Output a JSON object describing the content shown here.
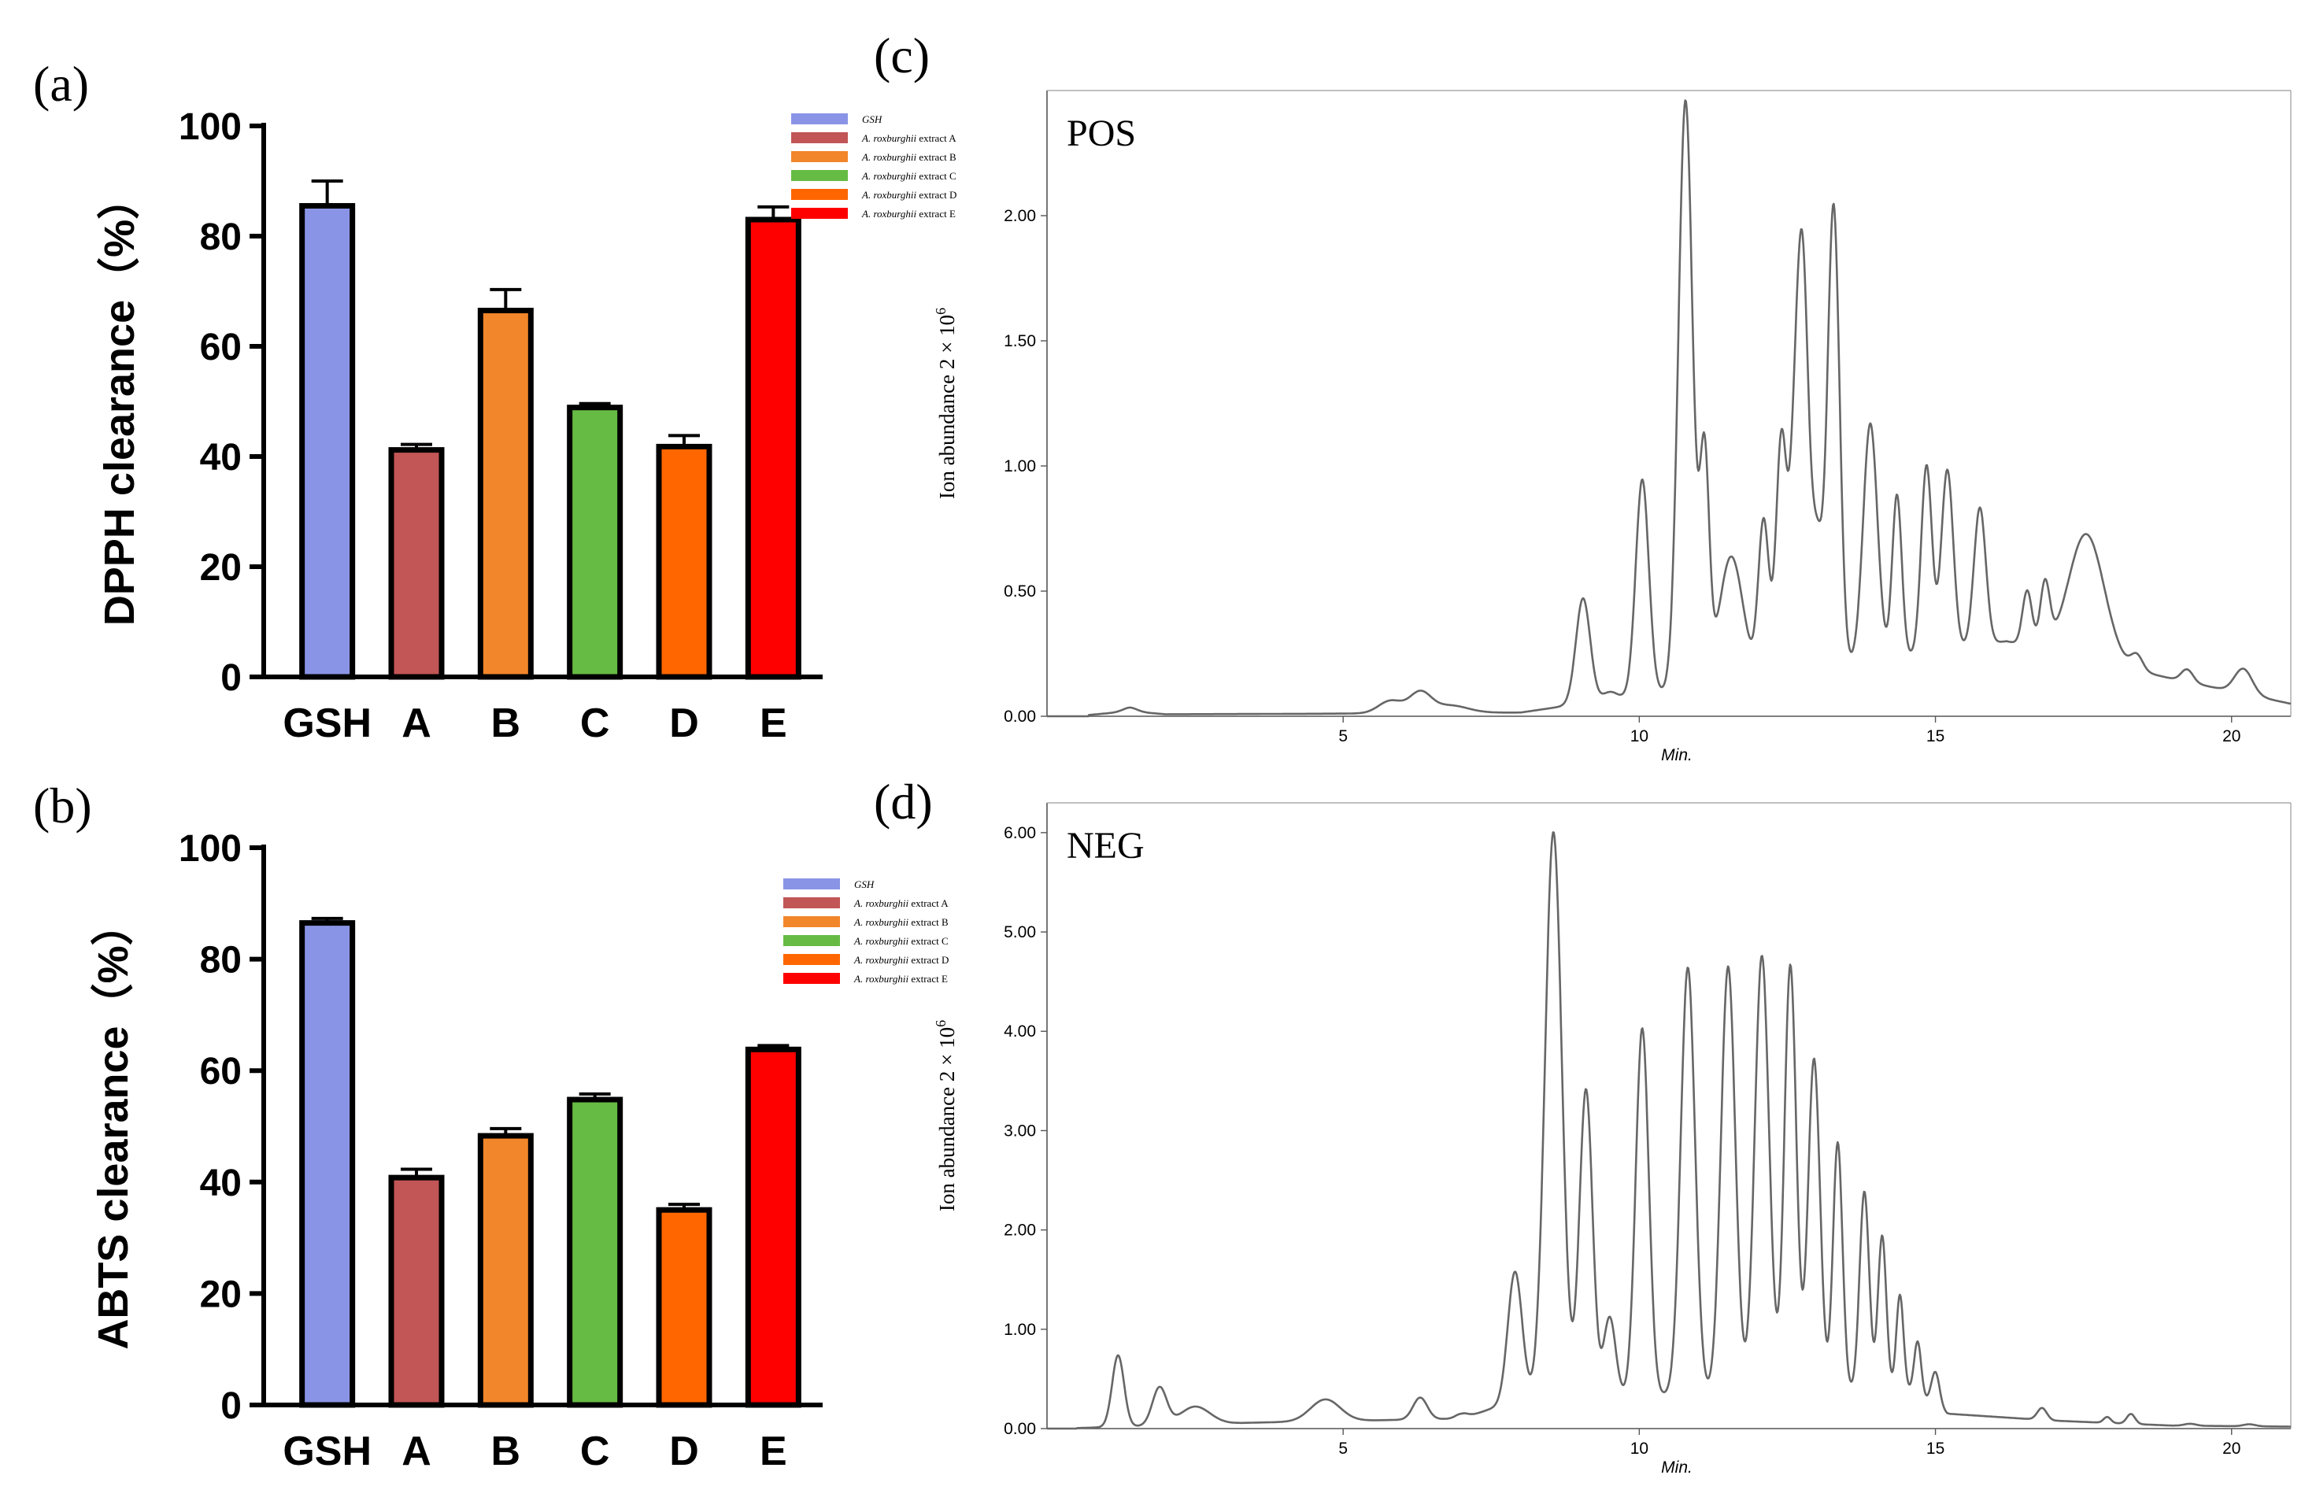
{
  "figure": {
    "panel_labels": [
      "(a)",
      "(b)",
      "(c)",
      "(d)"
    ]
  },
  "colors": {
    "GSH": "#8a94e6",
    "A": "#c25555",
    "B": "#f2862a",
    "C": "#66bb44",
    "D": "#ff6600",
    "E": "#ff0000",
    "trace": "#666666"
  },
  "chart_data": [
    {
      "panel": "(a)",
      "type": "bar",
      "ylabel": "DPPH clearance（%）",
      "ylim": [
        0,
        100
      ],
      "yticks": [
        0,
        20,
        40,
        60,
        80,
        100
      ],
      "categories": [
        "GSH",
        "A",
        "B",
        "C",
        "D",
        "E"
      ],
      "values": [
        85.5,
        41.2,
        66.5,
        48.9,
        41.8,
        83.0
      ],
      "errors": [
        4.5,
        1.0,
        3.8,
        0.7,
        2.0,
        2.3
      ],
      "legend": {
        "position": "top-right",
        "entries": [
          {
            "italic": "GSH",
            "text": ""
          },
          {
            "italic": "A. roxburghii",
            "text": " extract A"
          },
          {
            "italic": "A. roxburghii",
            "text": " extract B"
          },
          {
            "italic": "A. roxburghii",
            "text": " extract C"
          },
          {
            "italic": "A. roxburghii",
            "text": " extract D"
          },
          {
            "italic": "A. roxburghii",
            "text": " extract E"
          }
        ]
      }
    },
    {
      "panel": "(b)",
      "type": "bar",
      "ylabel": "ABTS clearance（%）",
      "ylim": [
        0,
        100
      ],
      "yticks": [
        0,
        20,
        40,
        60,
        80,
        100
      ],
      "categories": [
        "GSH",
        "A",
        "B",
        "C",
        "D",
        "E"
      ],
      "values": [
        86.5,
        40.8,
        48.3,
        54.8,
        35.0,
        63.8
      ],
      "errors": [
        0.8,
        1.5,
        1.3,
        1.0,
        1.0,
        0.7
      ],
      "legend": {
        "position": "top-right",
        "entries": [
          {
            "italic": "GSH",
            "text": ""
          },
          {
            "italic": "A. roxburghii",
            "text": " extract A"
          },
          {
            "italic": "A. roxburghii",
            "text": " extract B"
          },
          {
            "italic": "A. roxburghii",
            "text": " extract C"
          },
          {
            "italic": "A. roxburghii",
            "text": " extract D"
          },
          {
            "italic": "A. roxburghii",
            "text": " extract E"
          }
        ]
      }
    },
    {
      "panel": "(c)",
      "type": "line",
      "tag": "POS",
      "xlabel": "Min.",
      "ylabel": "Ion abundance 2 × 10",
      "ylabel_sup": "6",
      "xlim": [
        0,
        21
      ],
      "ylim": [
        0,
        2.5
      ],
      "xticks": [
        5,
        10,
        15,
        20
      ],
      "yticks": [
        "0.00",
        "0.50",
        "1.00",
        "1.50",
        "2.00"
      ],
      "baseline": [
        [
          0.7,
          0.005
        ],
        [
          1.4,
          0.02
        ],
        [
          2.0,
          0.008
        ],
        [
          4.5,
          0.01
        ],
        [
          8.0,
          0.015
        ],
        [
          16.2,
          0.3
        ],
        [
          19.0,
          0.15
        ],
        [
          21.0,
          0.05
        ]
      ],
      "peaks": [
        [
          1.4,
          0.015,
          0.12
        ],
        [
          5.8,
          0.05,
          0.2
        ],
        [
          6.3,
          0.08,
          0.18
        ],
        [
          6.8,
          0.03,
          0.3
        ],
        [
          9.05,
          0.42,
          0.12
        ],
        [
          9.5,
          0.03,
          0.12
        ],
        [
          10.05,
          0.86,
          0.11
        ],
        [
          10.78,
          2.35,
          0.12
        ],
        [
          11.1,
          0.9,
          0.08
        ],
        [
          11.55,
          0.5,
          0.2
        ],
        [
          12.1,
          0.62,
          0.09
        ],
        [
          12.4,
          0.95,
          0.09
        ],
        [
          12.6,
          0.5,
          0.08
        ],
        [
          12.75,
          1.65,
          0.1
        ],
        [
          13.0,
          0.5,
          0.1
        ],
        [
          13.28,
          1.84,
          0.1
        ],
        [
          13.9,
          0.95,
          0.12
        ],
        [
          14.35,
          0.65,
          0.08
        ],
        [
          14.85,
          0.75,
          0.09
        ],
        [
          15.2,
          0.72,
          0.1
        ],
        [
          15.75,
          0.55,
          0.1
        ],
        [
          16.55,
          0.22,
          0.08
        ],
        [
          16.85,
          0.25,
          0.08
        ],
        [
          17.55,
          0.5,
          0.3
        ],
        [
          18.4,
          0.06,
          0.1
        ],
        [
          19.25,
          0.05,
          0.1
        ],
        [
          20.2,
          0.1,
          0.15
        ]
      ]
    },
    {
      "panel": "(d)",
      "type": "line",
      "tag": "NEG",
      "xlabel": "Min.",
      "ylabel": "Ion abundance 2 × 10",
      "ylabel_sup": "6",
      "xlim": [
        0,
        21
      ],
      "ylim": [
        0,
        6.3
      ],
      "xticks": [
        5,
        10,
        15,
        20
      ],
      "yticks": [
        "0.00",
        "1.00",
        "2.00",
        "3.00",
        "4.00",
        "5.00",
        "6.00"
      ],
      "baseline": [
        [
          0.5,
          0.005
        ],
        [
          3.5,
          0.06
        ],
        [
          7.0,
          0.1
        ],
        [
          8.0,
          0.3
        ],
        [
          14.5,
          0.4
        ],
        [
          15.2,
          0.15
        ],
        [
          17.0,
          0.08
        ],
        [
          19.0,
          0.03
        ],
        [
          21.0,
          0.02
        ]
      ],
      "peaks": [
        [
          1.2,
          0.72,
          0.1
        ],
        [
          1.9,
          0.38,
          0.12
        ],
        [
          2.5,
          0.18,
          0.25
        ],
        [
          4.7,
          0.22,
          0.25
        ],
        [
          6.3,
          0.22,
          0.12
        ],
        [
          7.0,
          0.05,
          0.1
        ],
        [
          7.9,
          1.3,
          0.12
        ],
        [
          8.55,
          5.7,
          0.14
        ],
        [
          9.1,
          3.1,
          0.11
        ],
        [
          9.5,
          0.8,
          0.1
        ],
        [
          10.05,
          3.7,
          0.11
        ],
        [
          10.82,
          4.3,
          0.12
        ],
        [
          11.5,
          4.3,
          0.12
        ],
        [
          12.07,
          4.4,
          0.12
        ],
        [
          12.55,
          4.3,
          0.1
        ],
        [
          12.95,
          3.35,
          0.1
        ],
        [
          13.35,
          2.5,
          0.08
        ],
        [
          13.8,
          2.0,
          0.08
        ],
        [
          14.1,
          1.55,
          0.07
        ],
        [
          14.4,
          0.95,
          0.06
        ],
        [
          14.7,
          0.55,
          0.06
        ],
        [
          15.0,
          0.35,
          0.07
        ],
        [
          16.8,
          0.12,
          0.08
        ],
        [
          17.9,
          0.06,
          0.06
        ],
        [
          18.3,
          0.1,
          0.07
        ],
        [
          19.3,
          0.02,
          0.1
        ],
        [
          20.3,
          0.02,
          0.1
        ]
      ]
    }
  ]
}
